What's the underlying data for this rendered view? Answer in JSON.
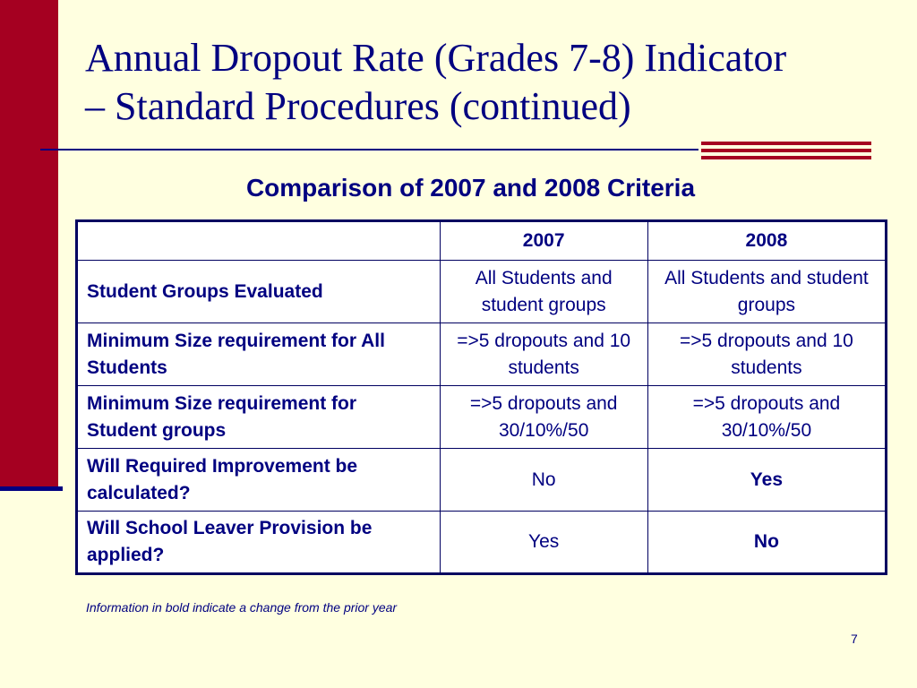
{
  "slide": {
    "title_line1": "Annual Dropout Rate (Grades 7-8) Indicator",
    "title_line2": "– Standard Procedures (continued)",
    "subtitle": "Comparison of 2007 and 2008 Criteria",
    "footnote": "Information in bold indicate a change from the prior year",
    "page_number": "7"
  },
  "table": {
    "headers": [
      "",
      "2007",
      "2008"
    ],
    "rows": [
      {
        "label": "Student Groups Evaluated",
        "v2007": "All Students and student groups",
        "v2008": "All Students and student groups"
      },
      {
        "label": "Minimum Size requirement for All Students",
        "v2007": "=>5 dropouts and 10 students",
        "v2008": "=>5 dropouts and 10 students"
      },
      {
        "label": "Minimum Size requirement for Student groups",
        "v2007": "=>5 dropouts and 30/10%/50",
        "v2008": "=>5 dropouts and 30/10%/50"
      },
      {
        "label": "Will Required Improvement be calculated?",
        "v2007": "No",
        "v2008": "Yes",
        "v2008_bold": true
      },
      {
        "label": "Will School Leaver Provision be applied?",
        "v2007": "Yes",
        "v2008": "No",
        "v2008_bold": true
      }
    ]
  },
  "colors": {
    "background": "#ffffe0",
    "accent_red": "#a50021",
    "navy": "#000080"
  }
}
